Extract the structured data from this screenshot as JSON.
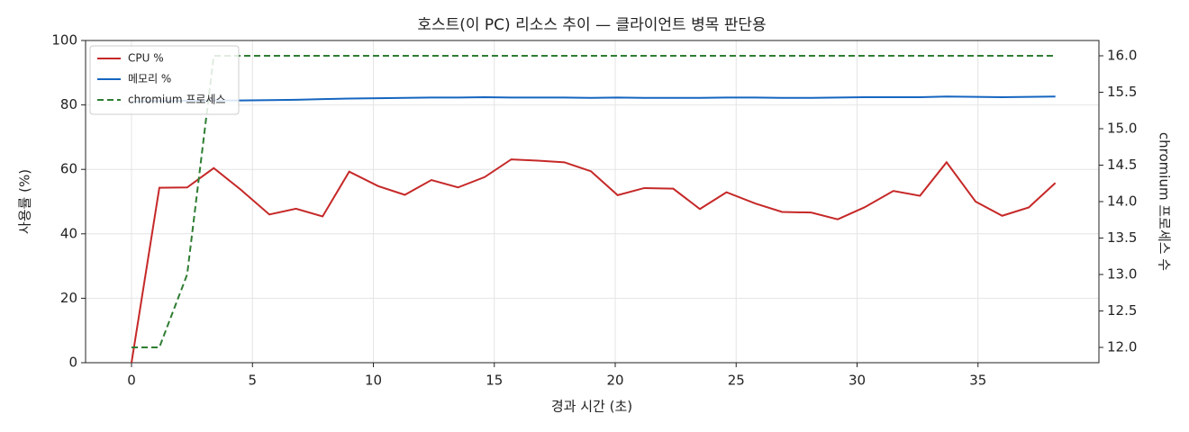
{
  "chart_data": {
    "type": "line",
    "title": "호스트(이 PC) 리소스 추이 — 클라이언트 병목 판단용",
    "x_label": "경과 시간 (초)",
    "y_label": "사용률 (%)",
    "y2_label": "chromium 프로세스 수",
    "x": [
      0,
      1.15,
      2.3,
      3.4,
      4.5,
      5.7,
      6.8,
      7.9,
      9.0,
      10.2,
      11.3,
      12.4,
      13.5,
      14.6,
      15.7,
      16.8,
      17.9,
      19.0,
      20.1,
      21.2,
      22.4,
      23.5,
      24.6,
      25.8,
      26.9,
      28.1,
      29.2,
      30.3,
      31.5,
      32.6,
      33.7,
      34.9,
      36.0,
      37.1,
      38.2
    ],
    "series": [
      {
        "name": "CPU %",
        "color": "#c62828",
        "linestyle": "solid",
        "values": [
          0,
          54.3,
          54.4,
          60.4,
          53.8,
          46.0,
          47.8,
          45.4,
          59.3,
          54.8,
          52.1,
          56.7,
          54.4,
          57.6,
          63.1,
          62.7,
          62.2,
          59.4,
          52.0,
          54.2,
          54.0,
          47.7,
          52.9,
          49.4,
          46.8,
          46.6,
          44.5,
          48.2,
          53.3,
          51.8,
          62.2,
          50.0,
          45.6,
          48.2,
          55.8
        ]
      },
      {
        "name": "메모리 %",
        "color": "#1565c0",
        "linestyle": "solid",
        "values": [
          81.0,
          81.2,
          81.3,
          81.4,
          81.4,
          81.5,
          81.6,
          81.8,
          82.0,
          82.1,
          82.2,
          82.3,
          82.3,
          82.4,
          82.3,
          82.3,
          82.3,
          82.2,
          82.3,
          82.2,
          82.2,
          82.2,
          82.3,
          82.3,
          82.2,
          82.2,
          82.3,
          82.4,
          82.4,
          82.4,
          82.6,
          82.5,
          82.4,
          82.5,
          82.6
        ]
      },
      {
        "name": "chromium 프로세스",
        "color": "#2e7d32",
        "linestyle": "dashed",
        "axis": "y2",
        "values": [
          12,
          12,
          13,
          16,
          16,
          16,
          16,
          16,
          16,
          16,
          16,
          16,
          16,
          16,
          16,
          16,
          16,
          16,
          16,
          16,
          16,
          16,
          16,
          16,
          16,
          16,
          16,
          16,
          16,
          16,
          16,
          16,
          16,
          16,
          16
        ]
      }
    ],
    "xlim": [
      -1.9,
      40
    ],
    "xticks": [
      0,
      5,
      10,
      15,
      20,
      25,
      30,
      35
    ],
    "ylim": [
      0,
      100
    ],
    "yticks": [
      0,
      20,
      40,
      60,
      80,
      100
    ],
    "y2lim": [
      11.79,
      16.21
    ],
    "y2ticks": [
      {
        "value": 12,
        "label": "12.0"
      },
      {
        "value": 12.5,
        "label": "12.5"
      },
      {
        "value": 13,
        "label": "13.0"
      },
      {
        "value": 13.5,
        "label": "13.5"
      },
      {
        "value": 14,
        "label": "14.0"
      },
      {
        "value": 14.5,
        "label": "14.5"
      },
      {
        "value": 15,
        "label": "15.0"
      },
      {
        "value": 15.5,
        "label": "15.5"
      },
      {
        "value": 16,
        "label": "16.0"
      }
    ],
    "grid": true,
    "legend": "upper-left"
  }
}
